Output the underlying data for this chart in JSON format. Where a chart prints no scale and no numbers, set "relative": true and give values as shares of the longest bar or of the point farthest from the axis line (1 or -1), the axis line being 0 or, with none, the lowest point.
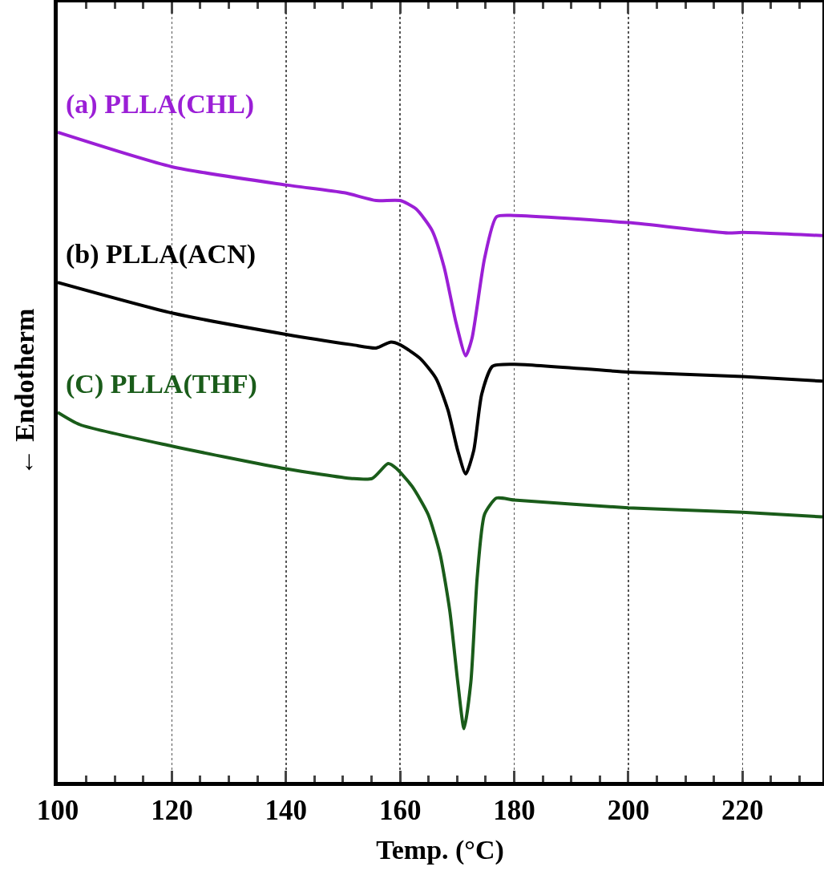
{
  "chart_data": {
    "type": "line",
    "relative": true,
    "xlabel": "Temp. (°C)",
    "ylabel": "← Endotherm",
    "xlim": [
      100,
      234
    ],
    "xticks": [
      100,
      120,
      140,
      160,
      180,
      200,
      220
    ],
    "grid": "x",
    "tick_labels": "x",
    "line_style": "solid",
    "marker": "none",
    "series": [
      {
        "name": "(a) PLLA(CHL)",
        "color": "#9b1fd6",
        "x": [
          100,
          120,
          140,
          150.2,
          155.8,
          160,
          162.8,
          165.6,
          167.7,
          169.8,
          171.5,
          172.6,
          174.8,
          176.9,
          180,
          200,
          217.5,
          220,
          234
        ],
        "values": [
          1.0,
          0.947,
          0.919,
          0.907,
          0.895,
          0.895,
          0.882,
          0.849,
          0.793,
          0.707,
          0.656,
          0.683,
          0.806,
          0.87,
          0.872,
          0.861,
          0.845,
          0.846,
          0.841
        ]
      },
      {
        "name": "(b) PLLA(ACN)",
        "color": "#000000",
        "x": [
          100,
          120,
          140,
          151.6,
          155.8,
          158.3,
          160,
          163.5,
          166.3,
          168.4,
          170.1,
          171.5,
          172.9,
          174.3,
          176.2,
          180,
          200,
          220,
          234
        ],
        "values": [
          0.769,
          0.722,
          0.689,
          0.673,
          0.668,
          0.677,
          0.673,
          0.652,
          0.621,
          0.572,
          0.51,
          0.474,
          0.51,
          0.597,
          0.64,
          0.643,
          0.631,
          0.624,
          0.617
        ]
      },
      {
        "name": "(C) PLLA(THF)",
        "color": "#1a5c1a",
        "x": [
          100,
          103.9,
          120,
          140,
          151.6,
          155.1,
          157.9,
          159.3,
          162.1,
          164.9,
          167,
          168.7,
          170.1,
          171.2,
          172.4,
          173.5,
          174.8,
          176.9,
          180,
          200,
          220,
          234
        ],
        "values": [
          0.569,
          0.55,
          0.517,
          0.482,
          0.467,
          0.467,
          0.49,
          0.483,
          0.455,
          0.412,
          0.351,
          0.264,
          0.154,
          0.082,
          0.154,
          0.314,
          0.412,
          0.437,
          0.434,
          0.422,
          0.415,
          0.408
        ]
      }
    ]
  }
}
